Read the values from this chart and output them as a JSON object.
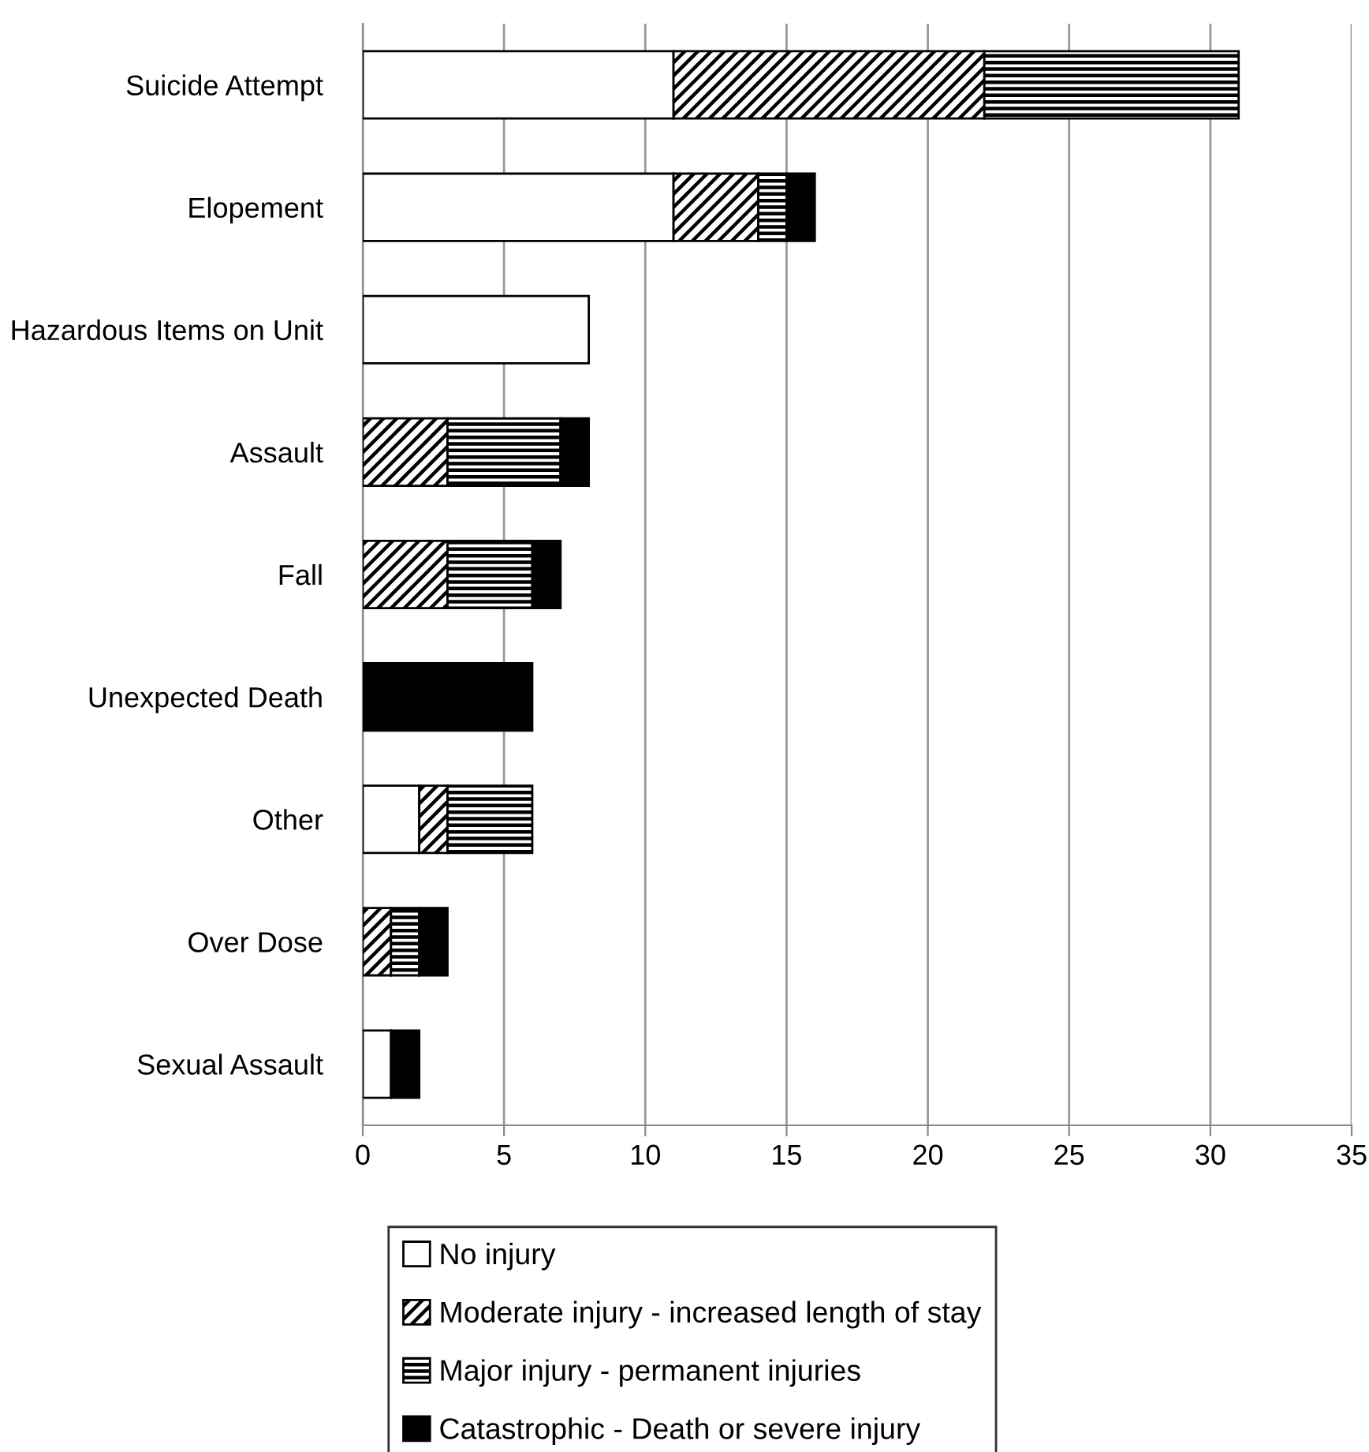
{
  "chart_data": {
    "type": "bar",
    "orientation": "horizontal",
    "stacked": true,
    "categories": [
      "Suicide Attempt",
      "Elopement",
      "Hazardous Items on Unit",
      "Assault",
      "Fall",
      "Unexpected Death",
      "Other",
      "Over Dose",
      "Sexual Assault"
    ],
    "series": [
      {
        "name": "No injury",
        "color": "#ffffff",
        "values": [
          11,
          11,
          8,
          0,
          0,
          0,
          2,
          0,
          1
        ]
      },
      {
        "name": "Moderate injury - increased length of stay",
        "color": "#000000",
        "values": [
          11,
          3,
          0,
          3,
          3,
          0,
          1,
          1,
          0
        ]
      },
      {
        "name": "Major injury - permanent injuries",
        "color": "#000000",
        "values": [
          9,
          1,
          0,
          4,
          3,
          0,
          3,
          1,
          0
        ]
      },
      {
        "name": "Catastrophic - Death or severe injury",
        "color": "#000000",
        "values": [
          0,
          1,
          0,
          1,
          1,
          6,
          0,
          1,
          1
        ]
      }
    ],
    "xlim": [
      0,
      35
    ],
    "xticks": [
      0,
      5,
      10,
      15,
      20,
      25,
      30,
      35
    ],
    "grid": "x",
    "legend": "bottom"
  }
}
